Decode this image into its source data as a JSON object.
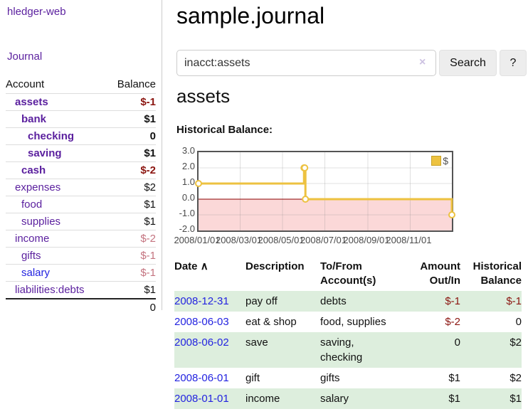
{
  "sidebar": {
    "brand": "hledger-web",
    "journal_link": "Journal",
    "accounts_table": {
      "account_header": "Account",
      "balance_header": "Balance",
      "rows": [
        {
          "name": "assets",
          "depth": 1,
          "bold": true,
          "link_color": "purple",
          "balance": "$-1",
          "balance_class": "neg-bold"
        },
        {
          "name": "bank",
          "depth": 2,
          "bold": true,
          "link_color": "purple",
          "balance": "$1",
          "balance_class": "pos-bold"
        },
        {
          "name": "checking",
          "depth": 3,
          "bold": true,
          "link_color": "purple",
          "balance": "0",
          "balance_class": "pos-bold"
        },
        {
          "name": "saving",
          "depth": 3,
          "bold": true,
          "link_color": "purple",
          "balance": "$1",
          "balance_class": "pos-bold"
        },
        {
          "name": "cash",
          "depth": 2,
          "bold": true,
          "link_color": "purple",
          "balance": "$-2",
          "balance_class": "neg-bold"
        },
        {
          "name": "expenses",
          "depth": 1,
          "bold": false,
          "link_color": "purple",
          "balance": "$2",
          "balance_class": "pos"
        },
        {
          "name": "food",
          "depth": 2,
          "bold": false,
          "link_color": "purple",
          "balance": "$1",
          "balance_class": "pos"
        },
        {
          "name": "supplies",
          "depth": 2,
          "bold": false,
          "link_color": "purple",
          "balance": "$1",
          "balance_class": "pos"
        },
        {
          "name": "income",
          "depth": 1,
          "bold": false,
          "link_color": "purple",
          "balance": "$-2",
          "balance_class": "neg-dim"
        },
        {
          "name": "gifts",
          "depth": 2,
          "bold": false,
          "link_color": "purple",
          "balance": "$-1",
          "balance_class": "neg-dim"
        },
        {
          "name": "salary",
          "depth": 2,
          "bold": false,
          "link_color": "blue",
          "balance": "$-1",
          "balance_class": "neg-dim"
        },
        {
          "name": "liabilities:debts",
          "depth": 1,
          "bold": false,
          "link_color": "purple",
          "balance": "$1",
          "balance_class": "pos"
        }
      ],
      "total": "0"
    }
  },
  "main": {
    "title": "sample.journal",
    "search": {
      "value": "inacct:assets",
      "clear_icon": "×",
      "search_button": "Search",
      "help_button": "?"
    },
    "account_title": "assets",
    "chart_label": "Historical Balance:"
  },
  "chart_data": {
    "type": "line",
    "steps": true,
    "title": "Historical Balance:",
    "series": [
      {
        "name": "$",
        "color": "#edc240",
        "points": [
          {
            "date": "2008/01/01",
            "value": 1
          },
          {
            "date": "2008/06/01",
            "value": 2
          },
          {
            "date": "2008/06/02",
            "value": 2
          },
          {
            "date": "2008/06/03",
            "value": 0
          },
          {
            "date": "2008/12/31",
            "value": -1
          }
        ]
      }
    ],
    "x_ticks": [
      "2008/01/01",
      "2008/03/01",
      "2008/05/01",
      "2008/07/01",
      "2008/09/01",
      "2008/11/01"
    ],
    "y_ticks": [
      "3.0",
      "2.0",
      "1.0",
      "0.0",
      "-1.0",
      "-2.0"
    ],
    "ylim": [
      -2,
      3
    ],
    "x_range_days": 365,
    "grid": true,
    "legend": {
      "label": "$",
      "position": "top-right"
    },
    "zero_line_color": "#8b0000",
    "negative_fill": "#fbd8d8",
    "grid_line_color": "rgba(130,130,130,0.25)",
    "point_fill": "#ffffff"
  },
  "register": {
    "headers": {
      "date": "Date",
      "sort_icon": "∧",
      "description": "Description",
      "accounts": "To/From Account(s)",
      "amount": "Amount Out/In",
      "balance": "Historical Balance"
    },
    "rows": [
      {
        "date": "2008-12-31",
        "description": "pay off",
        "accounts": [
          "debts"
        ],
        "amount": "$-1",
        "amount_neg": true,
        "balance": "$-1",
        "balance_neg": true
      },
      {
        "date": "2008-06-03",
        "description": "eat & shop",
        "accounts": [
          "food, supplies"
        ],
        "amount": "$-2",
        "amount_neg": true,
        "balance": "0",
        "balance_neg": false
      },
      {
        "date": "2008-06-02",
        "description": "save",
        "accounts": [
          "saving,",
          "checking"
        ],
        "amount": "0",
        "amount_neg": false,
        "balance": "$2",
        "balance_neg": false
      },
      {
        "date": "2008-06-01",
        "description": "gift",
        "accounts": [
          "gifts"
        ],
        "amount": "$1",
        "amount_neg": false,
        "balance": "$2",
        "balance_neg": false
      },
      {
        "date": "2008-01-01",
        "description": "income",
        "accounts": [
          "salary"
        ],
        "amount": "$1",
        "amount_neg": false,
        "balance": "$1",
        "balance_neg": false
      }
    ]
  },
  "colors": {
    "link_purple": "#5a1f9e",
    "link_blue": "#2323e0",
    "negative_strong": "#8b1510",
    "negative_dim": "#c4737f",
    "row_green": "#ddeedd",
    "divider": "#cccccc"
  }
}
